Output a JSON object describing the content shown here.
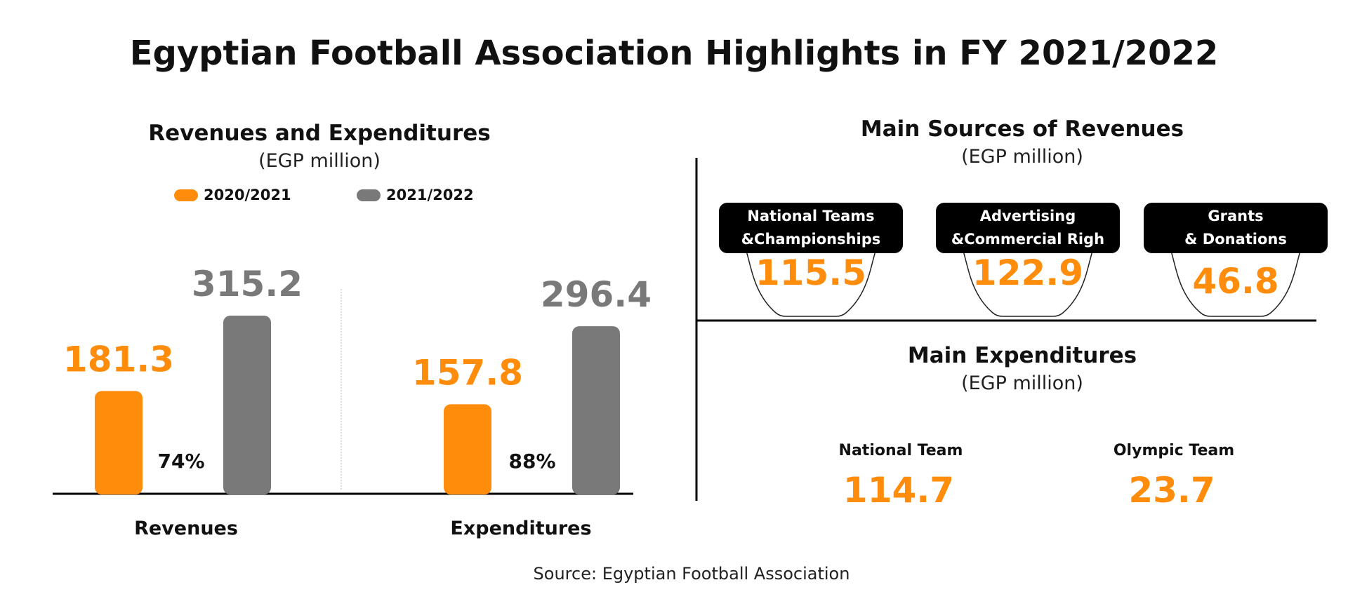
{
  "title": "Egyptian Football Association Highlights in FY 2021/2022",
  "colors": {
    "accent": "#ff8c0a",
    "gray": "#797979",
    "dark": "#000000"
  },
  "chart_data": [
    {
      "type": "bar",
      "title": "Revenues and Expenditures",
      "subtitle": "(EGP million)",
      "categories": [
        "Revenues",
        "Expenditures"
      ],
      "series": [
        {
          "name": "2020/2021",
          "values": [
            181.3,
            157.8
          ],
          "color": "#ff8c0a"
        },
        {
          "name": "2021/2022",
          "values": [
            315.2,
            296.4
          ],
          "color": "#797979"
        }
      ],
      "growth_labels": [
        "74%",
        "88%"
      ],
      "legend_position": "top",
      "ylim": [
        0,
        360
      ]
    }
  ],
  "revenue_sources": {
    "title": "Main Sources of Revenues",
    "unit": "(EGP million)",
    "items": [
      {
        "line1": "National Teams",
        "line2": "&Championships",
        "value": "115.5"
      },
      {
        "line1": "Advertising",
        "line2": "&Commercial Righ",
        "value": "122.9"
      },
      {
        "line1": "Grants",
        "line2": "& Donations",
        "value": "46.8"
      }
    ]
  },
  "expenditures": {
    "title": "Main Expenditures",
    "unit": "(EGP million)",
    "items": [
      {
        "label": "National Team",
        "value": "114.7"
      },
      {
        "label": "Olympic Team",
        "value": "23.7"
      }
    ]
  },
  "source": "Source: Egyptian Football Association"
}
